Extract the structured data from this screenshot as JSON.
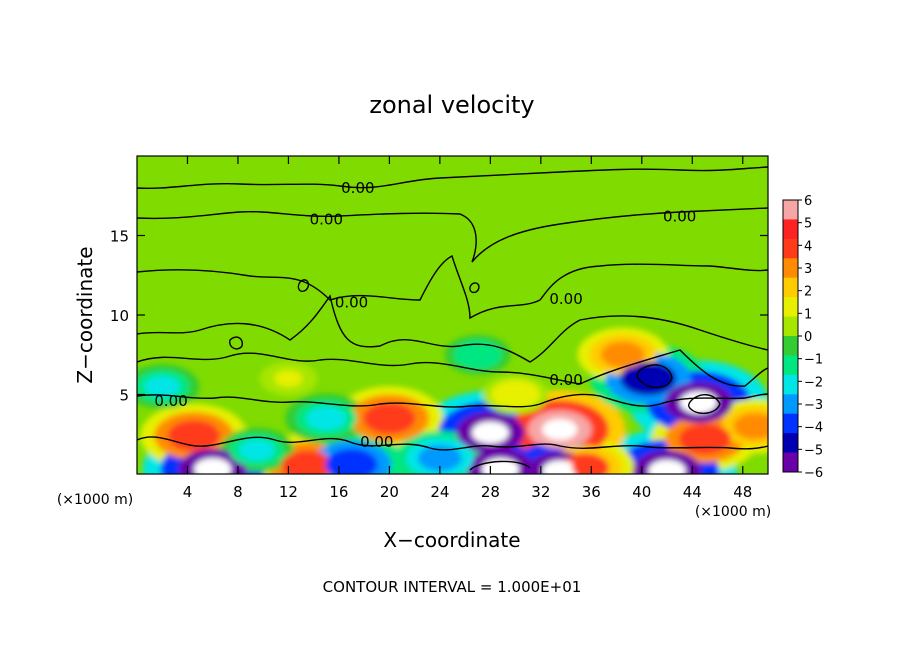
{
  "chart_data": {
    "type": "heatmap",
    "title": "zonal velocity",
    "xlabel": "X−coordinate",
    "ylabel": "Z−coordinate",
    "x_unit": "(×1000 m)",
    "y_unit": "(×1000 m)",
    "xlim": [
      0,
      50
    ],
    "ylim": [
      0,
      20
    ],
    "x_ticks": [
      "4",
      "8",
      "12",
      "16",
      "20",
      "24",
      "28",
      "32",
      "36",
      "40",
      "44",
      "48"
    ],
    "x_tick_values": [
      4,
      8,
      12,
      16,
      20,
      24,
      28,
      32,
      36,
      40,
      44,
      48
    ],
    "y_ticks": [
      "5",
      "10",
      "15"
    ],
    "y_tick_values": [
      5,
      10,
      15
    ],
    "colorbar_ticks": [
      "6",
      "5",
      "4",
      "3",
      "2",
      "1",
      "0",
      "−1",
      "−2",
      "−3",
      "−4",
      "−5",
      "−6"
    ],
    "colorbar_range": [
      -6,
      6
    ],
    "colorbar_colors": [
      "#f7a6a6",
      "#ff2222",
      "#ff3b1a",
      "#ff8c00",
      "#ffcc00",
      "#e6f000",
      "#a6e600",
      "#33cc33",
      "#00e680",
      "#00e6e6",
      "#0099ff",
      "#0033ff",
      "#0000b3",
      "#6a00a8"
    ],
    "contour_labels": [
      {
        "text": "0.00",
        "x": 17.5,
        "z": 18.0
      },
      {
        "text": "0.00",
        "x": 15.0,
        "z": 16.0
      },
      {
        "text": "0.00",
        "x": 43.0,
        "z": 16.2
      },
      {
        "text": "0.00",
        "x": 17.0,
        "z": 10.8
      },
      {
        "text": "0.00",
        "x": 34.0,
        "z": 11.0
      },
      {
        "text": "0.00",
        "x": 34.0,
        "z": 5.9
      },
      {
        "text": "0.00",
        "x": 2.7,
        "z": 4.6
      },
      {
        "text": "0.00",
        "x": 19.0,
        "z": 2.0
      }
    ],
    "blobs": [
      {
        "x": 4.5,
        "z": 2.4,
        "v": 4.0
      },
      {
        "x": 20.0,
        "z": 3.5,
        "v": 4.0
      },
      {
        "x": 13.5,
        "z": 0.5,
        "v": 4.0
      },
      {
        "x": 33.5,
        "z": 2.8,
        "v": 5.5
      },
      {
        "x": 35.5,
        "z": 0.4,
        "v": 3.5
      },
      {
        "x": 45.0,
        "z": 2.2,
        "v": 4.0
      },
      {
        "x": 49.0,
        "z": 3.0,
        "v": 3.0
      },
      {
        "x": 38.5,
        "z": 7.5,
        "v": 3.0
      },
      {
        "x": 6.0,
        "z": 0.3,
        "v": -6.0
      },
      {
        "x": 28.0,
        "z": 2.6,
        "v": -6.0
      },
      {
        "x": 28.8,
        "z": 0.3,
        "v": -6.0
      },
      {
        "x": 33.5,
        "z": 0.2,
        "v": -5.5
      },
      {
        "x": 42.0,
        "z": 0.2,
        "v": -6.0
      },
      {
        "x": 44.5,
        "z": 4.5,
        "v": -6.0
      },
      {
        "x": 40.5,
        "z": 6.0,
        "v": -4.5
      },
      {
        "x": 17.0,
        "z": 0.6,
        "v": -4.0
      },
      {
        "x": 24.0,
        "z": 1.0,
        "v": -3.0
      },
      {
        "x": 9.5,
        "z": 1.5,
        "v": -2.0
      },
      {
        "x": 15.0,
        "z": 3.5,
        "v": -2.5
      },
      {
        "x": 2.0,
        "z": 5.5,
        "v": -2.0
      },
      {
        "x": 27.0,
        "z": 7.5,
        "v": -1.5
      },
      {
        "x": 30.0,
        "z": 5.0,
        "v": 1.5
      },
      {
        "x": 12.0,
        "z": 6.0,
        "v": 1.0
      }
    ],
    "annotations": [
      "CONTOUR INTERVAL = 1.000E+01"
    ]
  }
}
